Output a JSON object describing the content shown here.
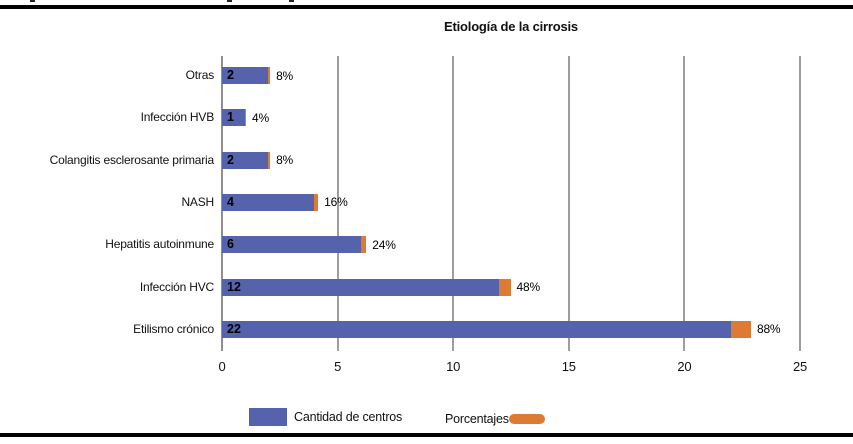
{
  "figure": {
    "title": "Etiología de la cirrosis",
    "legend": {
      "items": [
        {
          "label": "Cantidad de centros",
          "color": "#5562AC",
          "marker": "rect"
        },
        {
          "label": "Porcentajes",
          "color": "#DD7B35",
          "marker": "pill"
        }
      ],
      "position": "bottom"
    }
  },
  "chart_data": {
    "type": "bar",
    "orientation": "horizontal",
    "title": "Etiología de la cirrosis",
    "categories": [
      "Otras",
      "Infección HVB",
      "Colangitis esclerosante primaria",
      "NASH",
      "Hepatitis autoinmune",
      "Infección HVC",
      "Etilismo crónico"
    ],
    "series": [
      {
        "name": "Cantidad de centros",
        "color": "#5562AC",
        "values": [
          2,
          1,
          2,
          4,
          6,
          12,
          22
        ],
        "labels_inside_bar": [
          "2",
          "1",
          "2",
          "4",
          "6",
          "12",
          "22"
        ]
      },
      {
        "name": "Porcentajes",
        "color": "#DD7B35",
        "values_axis_units": [
          0.08,
          0.04,
          0.08,
          0.16,
          0.24,
          0.48,
          0.88
        ],
        "labels_outside_bar": [
          "8%",
          "4%",
          "8%",
          "16%",
          "24%",
          "48%",
          "88%"
        ]
      }
    ],
    "xlim": [
      0,
      25
    ],
    "x_ticks": [
      0,
      5,
      10,
      15,
      20,
      25
    ],
    "grid": "vertical-only",
    "bar_style": "stacked",
    "legend_position": "bottom",
    "gridline_color": "#9e9e9e",
    "text_color": "#000000"
  }
}
